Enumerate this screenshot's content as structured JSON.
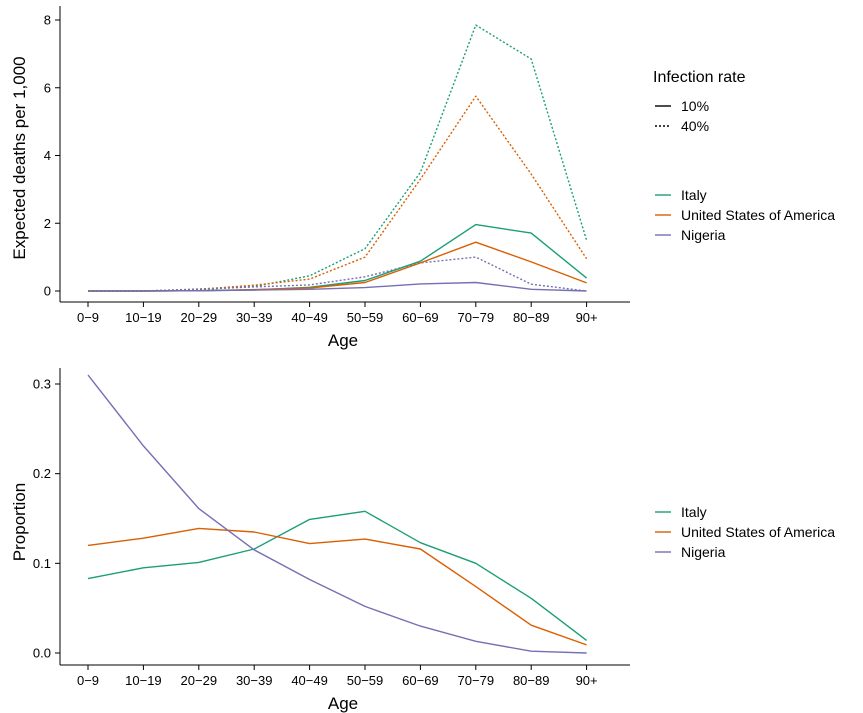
{
  "chart_data": [
    {
      "type": "line",
      "xlabel": "Age",
      "ylabel": "Expected deaths per 1,000",
      "ylim": [
        0,
        8
      ],
      "yticks": [
        "0",
        "2",
        "4",
        "6",
        "8"
      ],
      "categories": [
        "0−9",
        "10−19",
        "20−29",
        "30−39",
        "40−49",
        "50−59",
        "60−69",
        "70−79",
        "80−89",
        "90+"
      ],
      "grid": false,
      "legend_position": "right",
      "linetype_legend": {
        "title": "Infection rate",
        "entries": [
          {
            "label": "10%",
            "dash": "solid"
          },
          {
            "label": "40%",
            "dash": "dotted"
          }
        ]
      },
      "color_legend": [
        {
          "label": "Italy",
          "color": "#1b9e77"
        },
        {
          "label": "United States of America",
          "color": "#d95f02"
        },
        {
          "label": "Nigeria",
          "color": "#7570b3"
        }
      ],
      "series": [
        {
          "name": "Italy",
          "infection_rate": "40%",
          "color": "#1b9e77",
          "dash": "dotted",
          "values": [
            0.0,
            0.0,
            0.04,
            0.13,
            0.45,
            1.25,
            3.5,
            7.85,
            6.85,
            1.5
          ]
        },
        {
          "name": "United States of America",
          "infection_rate": "40%",
          "color": "#d95f02",
          "dash": "dotted",
          "values": [
            0.0,
            0.0,
            0.05,
            0.17,
            0.35,
            1.0,
            3.3,
            5.75,
            3.45,
            0.95
          ]
        },
        {
          "name": "Nigeria",
          "infection_rate": "40%",
          "color": "#7570b3",
          "dash": "dotted",
          "values": [
            0.0,
            0.0,
            0.06,
            0.12,
            0.18,
            0.42,
            0.83,
            1.0,
            0.2,
            0.0
          ]
        },
        {
          "name": "Italy",
          "infection_rate": "10%",
          "color": "#1b9e77",
          "dash": "solid",
          "values": [
            0.0,
            0.0,
            0.01,
            0.03,
            0.11,
            0.31,
            0.88,
            1.96,
            1.71,
            0.38
          ]
        },
        {
          "name": "United States of America",
          "infection_rate": "10%",
          "color": "#d95f02",
          "dash": "solid",
          "values": [
            0.0,
            0.0,
            0.01,
            0.04,
            0.09,
            0.25,
            0.83,
            1.44,
            0.86,
            0.24
          ]
        },
        {
          "name": "Nigeria",
          "infection_rate": "10%",
          "color": "#7570b3",
          "dash": "solid",
          "values": [
            0.0,
            0.0,
            0.01,
            0.03,
            0.05,
            0.1,
            0.21,
            0.25,
            0.05,
            0.0
          ]
        }
      ]
    },
    {
      "type": "line",
      "xlabel": "Age",
      "ylabel": "Proportion",
      "ylim": [
        0,
        0.3
      ],
      "yticks": [
        "0.0",
        "0.1",
        "0.2",
        "0.3"
      ],
      "categories": [
        "0−9",
        "10−19",
        "20−29",
        "30−39",
        "40−49",
        "50−59",
        "60−69",
        "70−79",
        "80−89",
        "90+"
      ],
      "grid": false,
      "legend_position": "right",
      "color_legend": [
        {
          "label": "Italy",
          "color": "#1b9e77"
        },
        {
          "label": "United States of America",
          "color": "#d95f02"
        },
        {
          "label": "Nigeria",
          "color": "#7570b3"
        }
      ],
      "series": [
        {
          "name": "Italy",
          "color": "#1b9e77",
          "dash": "solid",
          "values": [
            0.083,
            0.095,
            0.101,
            0.116,
            0.149,
            0.158,
            0.123,
            0.1,
            0.061,
            0.014
          ]
        },
        {
          "name": "United States of America",
          "color": "#d95f02",
          "dash": "solid",
          "values": [
            0.12,
            0.128,
            0.139,
            0.135,
            0.122,
            0.127,
            0.116,
            0.074,
            0.031,
            0.009
          ]
        },
        {
          "name": "Nigeria",
          "color": "#7570b3",
          "dash": "solid",
          "values": [
            0.31,
            0.231,
            0.161,
            0.115,
            0.082,
            0.052,
            0.03,
            0.013,
            0.002,
            0.0
          ]
        }
      ]
    }
  ]
}
